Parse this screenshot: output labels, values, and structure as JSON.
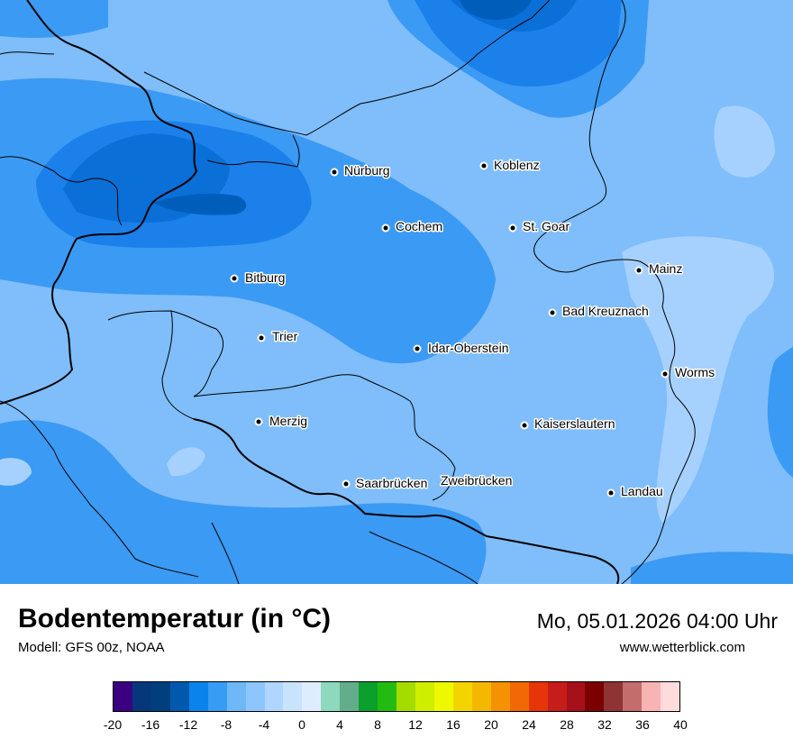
{
  "map": {
    "cities": [
      {
        "name": "Nürburg"
      },
      {
        "name": "Koblenz"
      },
      {
        "name": "Cochem"
      },
      {
        "name": "St. Goar"
      },
      {
        "name": "Mainz"
      },
      {
        "name": "Bitburg"
      },
      {
        "name": "Bad Kreuznach"
      },
      {
        "name": "Trier"
      },
      {
        "name": "Idar-Oberstein"
      },
      {
        "name": "Worms"
      },
      {
        "name": "Merzig"
      },
      {
        "name": "Kaiserslautern"
      },
      {
        "name": "Saarbrücken"
      },
      {
        "name": "Zweibrücken"
      },
      {
        "name": "Landau"
      }
    ],
    "colors": {
      "base": "#7fbdfb",
      "mid": "#3b9af3",
      "dark": "#1b80ea",
      "darker": "#0a6fd7",
      "darkest": "#005ebb",
      "light": "#a6d1ff"
    }
  },
  "footer": {
    "title": "Bodentemperatur (in °C)",
    "model": "Modell: GFS 00z, NOAA",
    "date": "Mo, 05.01.2026 04:00 Uhr",
    "site": "www.wetterblick.com"
  },
  "legend": {
    "colors": [
      "#3b0080",
      "#06377a",
      "#003f7e",
      "#0059ad",
      "#0a84ec",
      "#379cf3",
      "#6fb8f8",
      "#8cc6fc",
      "#aed6fe",
      "#c9e3fd",
      "#deedfe",
      "#8cd9bd",
      "#63ad8c",
      "#0ba02b",
      "#23bb10",
      "#a4dc00",
      "#d0ee00",
      "#eef800",
      "#f4d400",
      "#f5b800",
      "#f49204",
      "#f26807",
      "#e63508",
      "#c61c1a",
      "#a6101a",
      "#7c0000",
      "#8f3434",
      "#c36d6d",
      "#f8b3b3",
      "#ffdbdb"
    ],
    "ticks": [
      "-20",
      "-16",
      "-12",
      "-8",
      "-4",
      "0",
      "4",
      "8",
      "12",
      "16",
      "20",
      "24",
      "28",
      "32",
      "36",
      "40"
    ]
  }
}
